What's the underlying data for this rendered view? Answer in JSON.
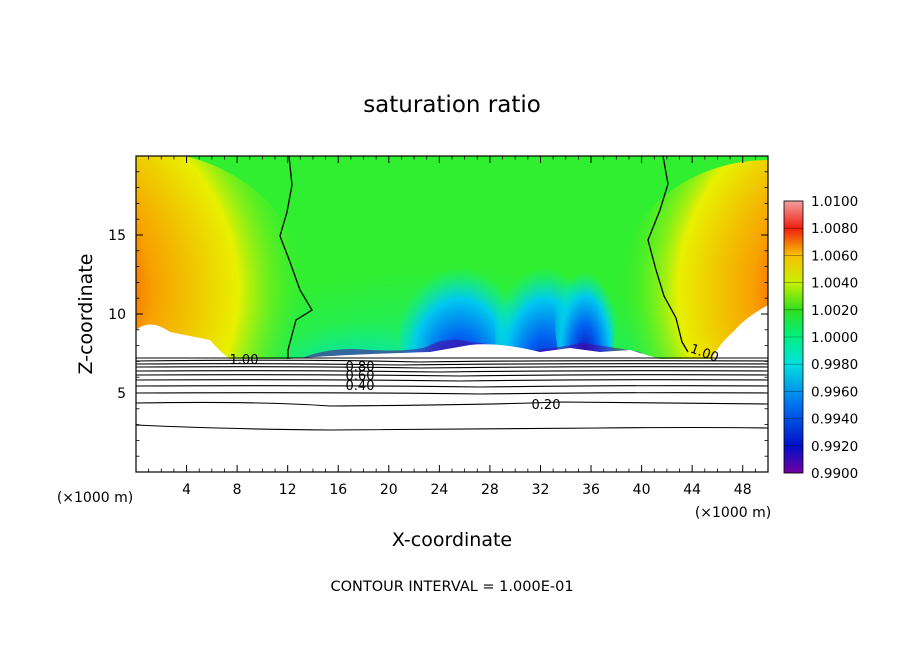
{
  "chart_data": {
    "type": "contour",
    "title": "saturation ratio",
    "xlabel": "X-coordinate",
    "ylabel": "Z-coordinate",
    "x_unit": "(×1000 m)",
    "xlim": [
      0,
      50
    ],
    "ylim": [
      0,
      20
    ],
    "xticks": [
      4,
      8,
      12,
      16,
      20,
      24,
      28,
      32,
      36,
      40,
      44,
      48
    ],
    "yticks": [
      5,
      10,
      15
    ],
    "footer": "CONTOUR INTERVAL = 1.000E-01",
    "colorbar": {
      "labels": [
        "1.0100",
        "1.0080",
        "1.0060",
        "1.0040",
        "1.0020",
        "1.0000",
        "0.9980",
        "0.9960",
        "0.9940",
        "0.9920",
        "0.9900"
      ],
      "colors": [
        "#f0a0a0",
        "#e8100a",
        "#f8a000",
        "#f8f000",
        "#30f030",
        "#00f0a0",
        "#00c0f8",
        "#0020d8",
        "#7000a0"
      ]
    },
    "contour_labels": [
      {
        "text": "1.00",
        "x": 8.5,
        "z": 7.3
      },
      {
        "text": "1.00",
        "x": 44.5,
        "z": 7.6
      },
      {
        "text": "0.80",
        "x": 17.7,
        "z": 6.7
      },
      {
        "text": "0.60",
        "x": 17.7,
        "z": 6.3
      },
      {
        "text": "0.40",
        "x": 17.7,
        "z": 5.5
      },
      {
        "text": "0.20",
        "x": 32.3,
        "z": 4.0
      }
    ]
  }
}
